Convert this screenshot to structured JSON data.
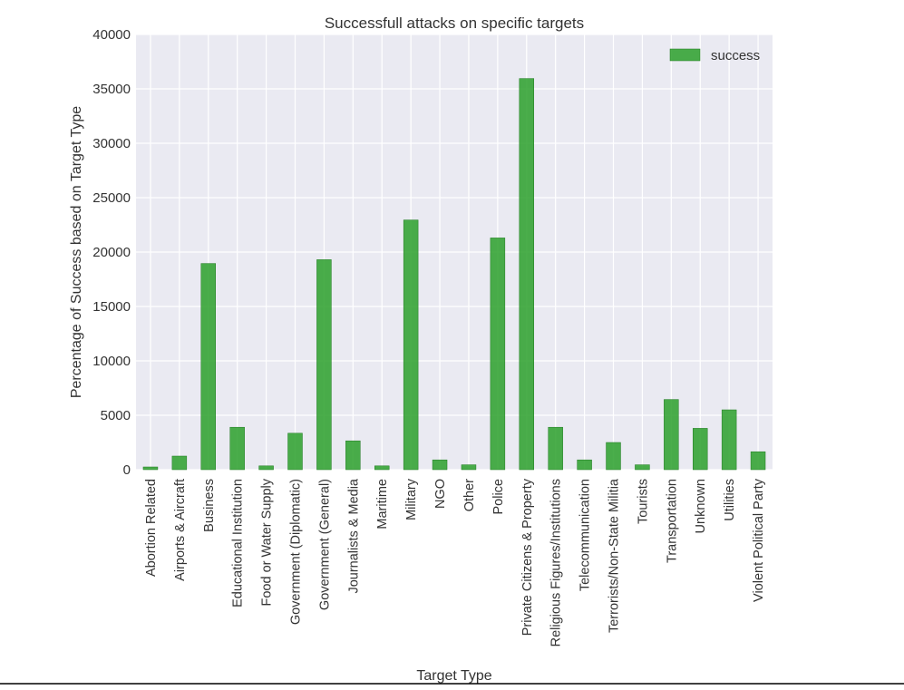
{
  "chart_data": {
    "type": "bar",
    "title": "Successfull attacks on specific targets",
    "xlabel": "Target Type",
    "ylabel": "Percentage of Success based on Target Type",
    "ylim": [
      0,
      40000
    ],
    "yticks": [
      0,
      5000,
      10000,
      15000,
      20000,
      25000,
      30000,
      35000,
      40000
    ],
    "grid": true,
    "legend_position": "top-right",
    "categories": [
      "Abortion Related",
      "Airports & Aircraft",
      "Business",
      "Educational Institution",
      "Food or Water Supply",
      "Government (Diplomatic)",
      "Government (General)",
      "Journalists & Media",
      "Maritime",
      "Military",
      "NGO",
      "Other",
      "Police",
      "Private Citizens & Property",
      "Religious Figures/Institutions",
      "Telecommunication",
      "Terrorists/Non-State Militia",
      "Tourists",
      "Transportation",
      "Unknown",
      "Utilities",
      "Violent Political Party"
    ],
    "series": [
      {
        "name": "success",
        "color": "#2ca02c",
        "values": [
          250,
          1250,
          18950,
          3900,
          350,
          3350,
          19300,
          2650,
          350,
          22950,
          900,
          450,
          21300,
          35950,
          3900,
          900,
          2500,
          450,
          6450,
          3800,
          5500,
          1650
        ]
      }
    ]
  },
  "colors": {
    "plot_background": "#eaeaf2",
    "grid": "#ffffff",
    "bar": "#2ca02c",
    "text": "#333333"
  }
}
